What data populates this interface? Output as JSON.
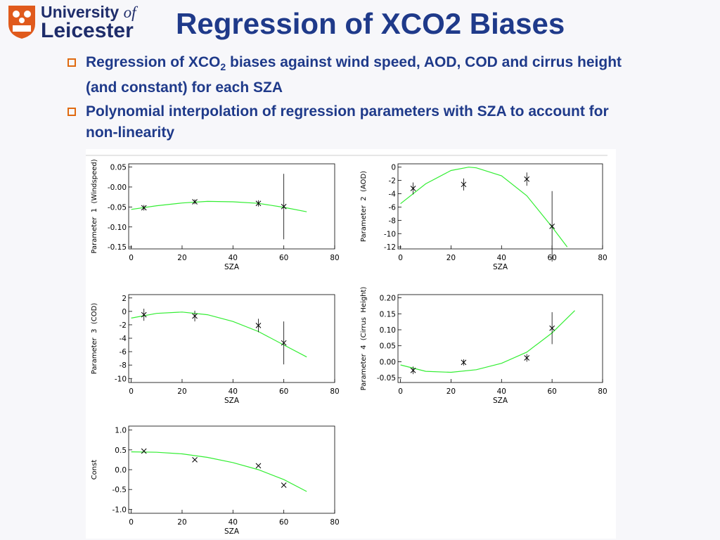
{
  "header": {
    "logo_word1": "University",
    "logo_word2": "of",
    "logo_word3": "Leicester",
    "title": "Regression of XCO2 Biases"
  },
  "bullets": [
    {
      "before": "Regression of XCO",
      "sub": "2",
      "after": " biases against wind speed, AOD, COD and cirrus height (and constant) for each SZA"
    },
    {
      "text": "Polynomial interpolation of regression parameters with SZA  to account for non-linearity"
    }
  ],
  "chart_data": [
    {
      "type": "scatter",
      "xlabel": "SZA",
      "ylabel": "Parameter  1  (Windspeed)",
      "xlim": [
        -1,
        80
      ],
      "xticks": [
        0,
        20,
        40,
        60,
        80
      ],
      "ylim": [
        -0.155,
        0.058
      ],
      "yticks": [
        0.05,
        {
          "value": 0,
          "label": "-0.00"
        },
        -0.05,
        {
          "value": -0.1,
          "label": "-0.10"
        },
        -0.15
      ],
      "points": {
        "x": [
          5,
          25,
          50,
          60
        ],
        "values": [
          -0.052,
          -0.037,
          -0.041,
          -0.049
        ],
        "errors": [
          0.007,
          0.006,
          0.008,
          0.082
        ],
        "color": "#000000"
      },
      "fit": {
        "x": [
          0,
          10,
          20,
          30,
          40,
          50,
          60,
          69
        ],
        "values": [
          -0.056,
          -0.047,
          -0.04,
          -0.036,
          -0.037,
          -0.041,
          -0.051,
          -0.062
        ],
        "color": "#33ee33"
      }
    },
    {
      "type": "scatter",
      "xlabel": "SZA",
      "ylabel": "Parameter  2  (AOD)",
      "xlim": [
        -1,
        80
      ],
      "xticks": [
        0,
        20,
        40,
        60,
        80
      ],
      "ylim": [
        -12.3,
        0.5
      ],
      "yticks": [
        0,
        -2,
        -4,
        -6,
        -8,
        -10,
        -12
      ],
      "points": {
        "x": [
          5,
          25,
          50,
          60
        ],
        "values": [
          -3.2,
          -2.6,
          -1.8,
          -8.9
        ],
        "errors": [
          0.9,
          0.9,
          1.0,
          5.3
        ],
        "color": "#000000"
      },
      "fit": {
        "x": [
          0,
          10,
          20,
          27,
          30,
          40,
          50,
          60,
          66
        ],
        "values": [
          -5.5,
          -2.5,
          -0.5,
          0,
          -0.1,
          -1.3,
          -4.3,
          -9,
          -12
        ],
        "color": "#33ee33"
      }
    },
    {
      "type": "scatter",
      "xlabel": "SZA",
      "ylabel": "Parameter  3  (COD)",
      "xlim": [
        -1,
        80
      ],
      "xticks": [
        0,
        20,
        40,
        60,
        80
      ],
      "ylim": [
        -10.6,
        2.5
      ],
      "yticks": [
        2,
        0,
        -2,
        -4,
        -6,
        -8,
        -10
      ],
      "points": {
        "x": [
          5,
          25,
          50,
          60
        ],
        "values": [
          -0.5,
          -0.7,
          -2.1,
          -4.7
        ],
        "errors": [
          0.9,
          0.8,
          1.0,
          3.2
        ],
        "color": "#000000"
      },
      "fit": {
        "x": [
          0,
          10,
          20,
          30,
          40,
          50,
          60,
          69
        ],
        "values": [
          -1,
          -0.3,
          -0.1,
          -0.5,
          -1.5,
          -3,
          -5,
          -6.8
        ],
        "color": "#33ee33"
      }
    },
    {
      "type": "scatter",
      "xlabel": "SZA",
      "ylabel": "Parameter  4  (Cirrus  Height)",
      "xlim": [
        -1,
        80
      ],
      "xticks": [
        0,
        20,
        40,
        60,
        80
      ],
      "ylim": [
        -0.065,
        0.21
      ],
      "yticks": [
        {
          "value": 0.2,
          "label": "0.20"
        },
        0.15,
        {
          "value": 0.1,
          "label": "0.10"
        },
        0.05,
        {
          "value": 0,
          "label": "0.00"
        },
        -0.05
      ],
      "points": {
        "x": [
          5,
          25,
          50,
          60
        ],
        "values": [
          -0.027,
          -0.002,
          0.012,
          0.105
        ],
        "errors": [
          0.012,
          0.01,
          0.012,
          0.05
        ],
        "color": "#000000"
      },
      "fit": {
        "x": [
          0,
          10,
          20,
          30,
          40,
          50,
          60,
          69
        ],
        "values": [
          -0.01,
          -0.03,
          -0.033,
          -0.025,
          -0.005,
          0.03,
          0.09,
          0.16
        ],
        "color": "#33ee33"
      }
    },
    {
      "type": "scatter",
      "xlabel": "SZA",
      "ylabel": "Const",
      "xlim": [
        -1,
        80
      ],
      "xticks": [
        0,
        20,
        40,
        60,
        80
      ],
      "ylim": [
        -1.1,
        1.1
      ],
      "yticks": [
        {
          "value": 1,
          "label": "1.0"
        },
        0.5,
        {
          "value": 0,
          "label": "0.0"
        },
        -0.5,
        {
          "value": -1,
          "label": "-1.0"
        }
      ],
      "points": {
        "x": [
          5,
          25,
          50,
          60
        ],
        "values": [
          0.47,
          0.25,
          0.1,
          -0.39
        ],
        "color": "#000000"
      },
      "fit": {
        "x": [
          0,
          10,
          20,
          30,
          40,
          50,
          60,
          69
        ],
        "values": [
          0.45,
          0.44,
          0.4,
          0.31,
          0.18,
          0,
          -0.25,
          -0.55
        ],
        "color": "#33ee33"
      }
    }
  ]
}
